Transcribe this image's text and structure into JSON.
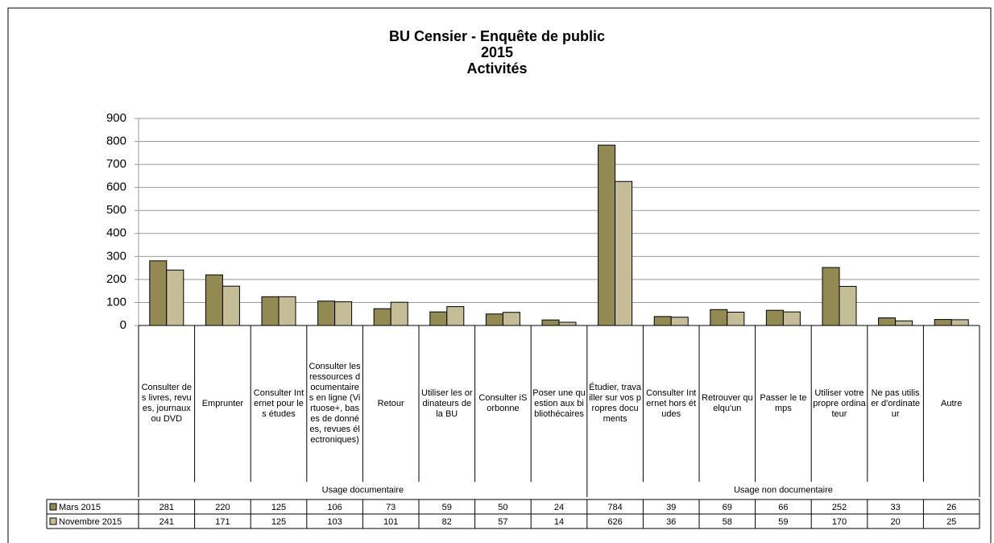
{
  "chart_data": {
    "type": "bar",
    "title": [
      "BU Censier - Enquête de public",
      "2015",
      "Activités"
    ],
    "categories": [
      "Consulter des livres, revues, journaux ou DVD",
      "Emprunter",
      "Consulter Internet pour les études",
      "Consulter les ressources documentaires en ligne (Virtuose+, bases de données, revues électroniques)",
      "Retour",
      "Utiliser les ordinateurs de la BU",
      "Consulter iSorbonne",
      "Poser une question aux bibliothécaires",
      "Étudier, travailler sur vos propres documents",
      "Consulter Internet hors études",
      "Retrouver quelqu'un",
      "Passer le temps",
      "Utiliser votre propre ordinateur",
      "Ne pas utiliser d'ordinateur",
      "Autre"
    ],
    "category_groups": [
      {
        "label": "Usage documentaire",
        "span": 8
      },
      {
        "label": "Usage non documentaire",
        "span": 7
      }
    ],
    "series": [
      {
        "name": "Mars 2015",
        "color": "#938953",
        "values": [
          281,
          220,
          125,
          106,
          73,
          59,
          50,
          24,
          784,
          39,
          69,
          66,
          252,
          33,
          26
        ]
      },
      {
        "name": "Novembre 2015",
        "color": "#c4bd97",
        "values": [
          241,
          171,
          125,
          103,
          101,
          82,
          57,
          14,
          626,
          36,
          58,
          59,
          170,
          20,
          25
        ]
      }
    ],
    "ylim": [
      0,
      900
    ],
    "yticks": [
      0,
      100,
      200,
      300,
      400,
      500,
      600,
      700,
      800,
      900
    ],
    "grid": true
  }
}
